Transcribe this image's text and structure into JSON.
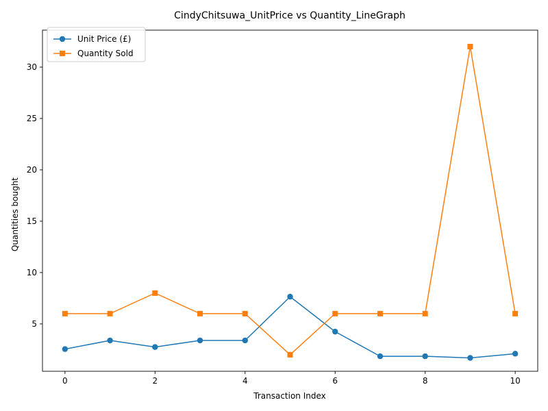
{
  "chart_data": {
    "type": "line",
    "title": "CindyChitsuwa_UnitPrice vs Quantity_LineGraph",
    "xlabel": "Transaction Index",
    "ylabel": "Quantities bought",
    "x": [
      0,
      1,
      2,
      3,
      4,
      5,
      6,
      7,
      8,
      9,
      10
    ],
    "xlim": [
      -0.5,
      10.5
    ],
    "ylim": [
      0.39,
      33.6
    ],
    "xticks": [
      0,
      2,
      4,
      6,
      8,
      10
    ],
    "yticks": [
      5,
      10,
      15,
      20,
      25,
      30
    ],
    "grid": false,
    "legend_position": "top-left",
    "series": [
      {
        "name": "Unit Price (£)",
        "color": "#1f77b4",
        "marker": "circle",
        "values": [
          2.55,
          3.39,
          2.75,
          3.39,
          3.39,
          7.65,
          4.25,
          1.85,
          1.85,
          1.69,
          2.1
        ]
      },
      {
        "name": "Quantity Sold",
        "color": "#ff7f0e",
        "marker": "square",
        "values": [
          6,
          6,
          8,
          6,
          6,
          2,
          6,
          6,
          6,
          32,
          6
        ]
      }
    ]
  }
}
